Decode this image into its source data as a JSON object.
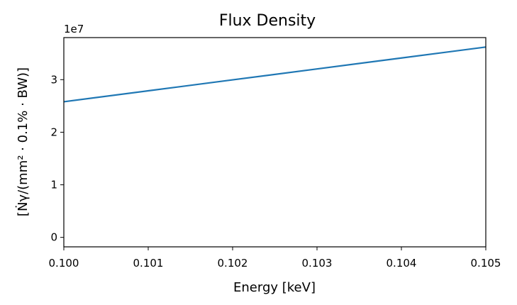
{
  "chart_data": {
    "type": "line",
    "title": "Flux Density",
    "xlabel": "Energy [keV]",
    "ylabel": "[Ṅγ/(mm² · 0.1% · BW)]",
    "y_offset_label": "1e7",
    "xlim": [
      0.1,
      0.105
    ],
    "ylim": [
      -1800000,
      38000000
    ],
    "x_ticks": [
      0.1,
      0.101,
      0.102,
      0.103,
      0.104,
      0.105
    ],
    "x_tick_labels": [
      "0.100",
      "0.101",
      "0.102",
      "0.103",
      "0.104",
      "0.105"
    ],
    "y_ticks": [
      0,
      10000000,
      20000000,
      30000000
    ],
    "y_tick_labels": [
      "0",
      "1",
      "2",
      "3"
    ],
    "grid": false,
    "series": [
      {
        "color": "#1f77b4",
        "x": [
          0.1,
          0.101,
          0.102,
          0.103,
          0.104,
          0.105
        ],
        "y": [
          25800000,
          27880000,
          29960000,
          32040000,
          34120000,
          36200000
        ]
      }
    ]
  }
}
